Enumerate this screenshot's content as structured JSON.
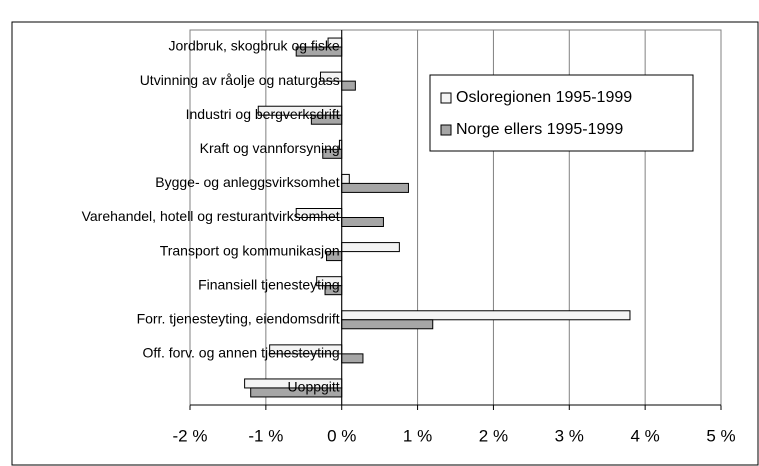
{
  "chart_data": {
    "type": "barh",
    "categories": [
      "Jordbruk, skogbruk og fiske",
      "Utvinning av råolje og naturgass",
      "Industri og bergverksdrift",
      "Kraft og vannforsyning",
      "Bygge- og anleggsvirksomhet",
      "Varehandel, hotell og resturantvirksomhet",
      "Transport og kommunikasjon",
      "Finansiell tjenesteyting",
      "Forr. tjenesteyting, eiendomsdrift",
      "Off. forv. og annen tjenesteyting",
      "Uoppgitt"
    ],
    "series": [
      {
        "name": "Osloregionen 1995-1999",
        "color": "#f4f4f4",
        "values": [
          -0.18,
          -0.28,
          -1.1,
          -0.03,
          0.1,
          -0.6,
          0.76,
          -0.33,
          3.8,
          -0.95,
          -1.28
        ]
      },
      {
        "name": "Norge ellers 1995-1999",
        "color": "#a6a6a6",
        "values": [
          -0.6,
          0.18,
          -0.4,
          -0.25,
          0.88,
          0.55,
          -0.2,
          -0.22,
          1.2,
          0.28,
          -1.2
        ]
      }
    ],
    "xlim": [
      -2,
      5
    ],
    "xticks": [
      {
        "value": -2,
        "label": "-2 %"
      },
      {
        "value": -1,
        "label": "-1 %"
      },
      {
        "value": 0,
        "label": "0 %"
      },
      {
        "value": 1,
        "label": "1 %"
      },
      {
        "value": 2,
        "label": "2 %"
      },
      {
        "value": 3,
        "label": "3 %"
      },
      {
        "value": 4,
        "label": "4 %"
      },
      {
        "value": 5,
        "label": "5 %"
      }
    ],
    "grid": true,
    "legend": "top-right"
  }
}
